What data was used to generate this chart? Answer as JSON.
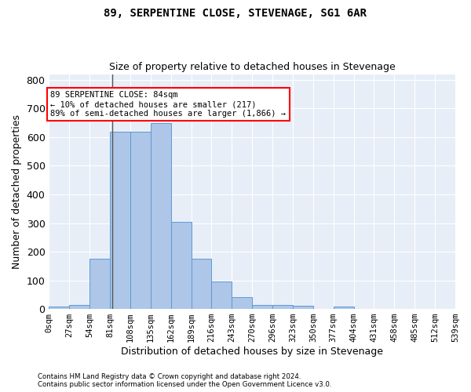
{
  "title": "89, SERPENTINE CLOSE, STEVENAGE, SG1 6AR",
  "subtitle": "Size of property relative to detached houses in Stevenage",
  "xlabel": "Distribution of detached houses by size in Stevenage",
  "ylabel": "Number of detached properties",
  "bin_labels": [
    "0sqm",
    "27sqm",
    "54sqm",
    "81sqm",
    "108sqm",
    "135sqm",
    "162sqm",
    "189sqm",
    "216sqm",
    "243sqm",
    "270sqm",
    "296sqm",
    "323sqm",
    "350sqm",
    "377sqm",
    "404sqm",
    "431sqm",
    "458sqm",
    "485sqm",
    "512sqm",
    "539sqm"
  ],
  "bar_values": [
    8,
    13,
    175,
    620,
    620,
    650,
    305,
    175,
    97,
    40,
    15,
    13,
    10,
    0,
    8,
    0,
    0,
    0,
    0,
    0
  ],
  "bar_color": "#aec6e8",
  "bar_edge_color": "#5b9bd5",
  "background_color": "#e8eef7",
  "annotation_line1": "89 SERPENTINE CLOSE: 84sqm",
  "annotation_line2": "← 10% of detached houses are smaller (217)",
  "annotation_line3": "89% of semi-detached houses are larger (1,866) →",
  "annotation_box_color": "white",
  "annotation_box_edge": "red",
  "vline_x": 3.11,
  "ylim": [
    0,
    820
  ],
  "yticks": [
    0,
    100,
    200,
    300,
    400,
    500,
    600,
    700,
    800
  ],
  "footer1": "Contains HM Land Registry data © Crown copyright and database right 2024.",
  "footer2": "Contains public sector information licensed under the Open Government Licence v3.0."
}
